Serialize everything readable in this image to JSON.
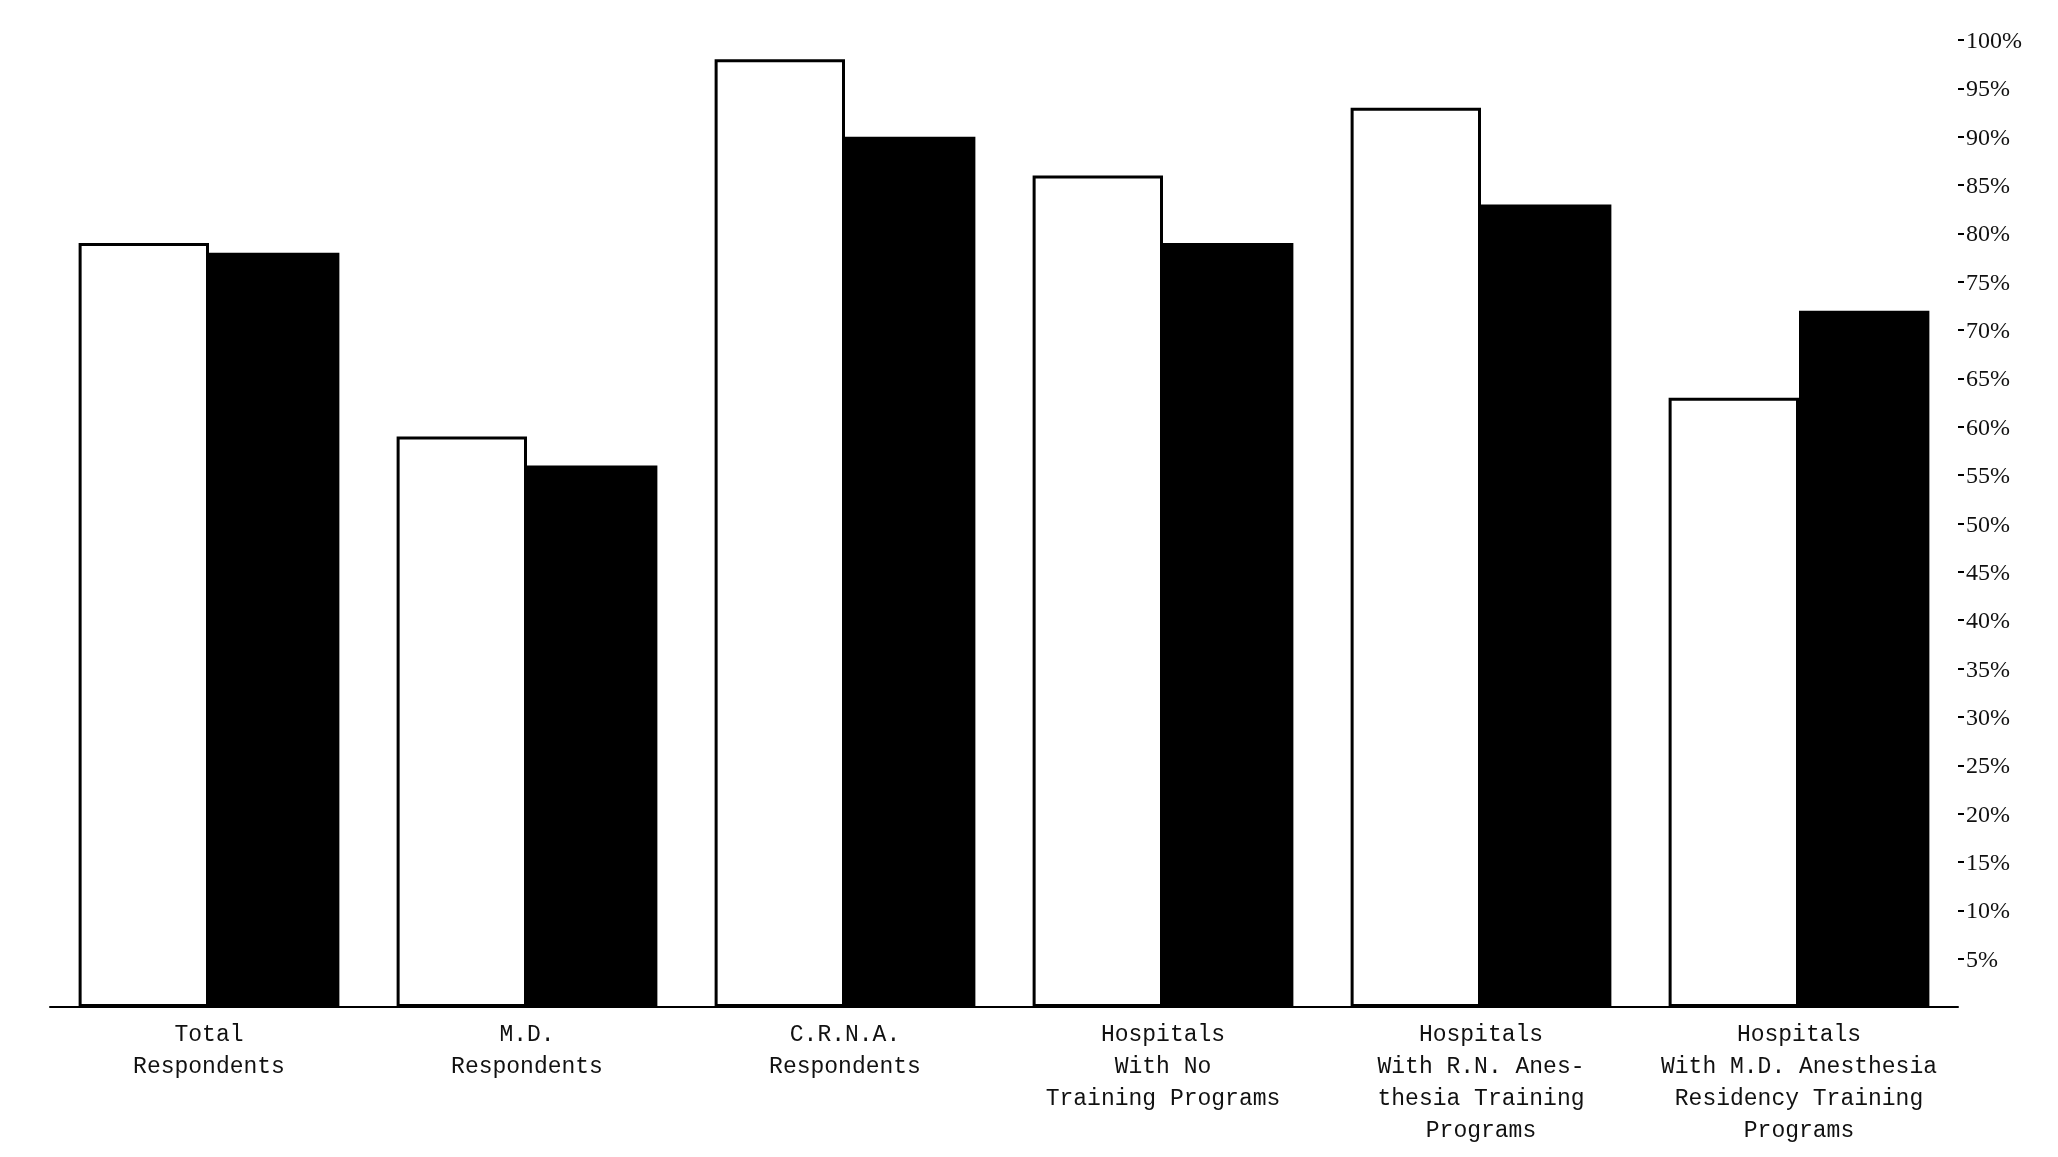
{
  "chart_data": {
    "type": "bar",
    "categories": [
      "Total\nRespondents",
      "M.D.\nRespondents",
      "C.R.N.A.\nRespondents",
      "Hospitals\nWith No\nTraining Programs",
      "Hospitals\nWith R.N. Anes-\nthesia Training\nPrograms",
      "Hospitals\nWith M.D. Anesthesia\nResidency Training\nPrograms"
    ],
    "series": [
      {
        "color": "#ffffff",
        "values": [
          79,
          59,
          98,
          86,
          93,
          63
        ]
      },
      {
        "color": "#000000",
        "values": [
          78,
          56,
          90,
          79,
          83,
          72
        ]
      }
    ],
    "ylim": [
      0,
      100
    ],
    "yticks": [
      {
        "value": 5,
        "label": "5%"
      },
      {
        "value": 10,
        "label": "10%"
      },
      {
        "value": 15,
        "label": "15%"
      },
      {
        "value": 20,
        "label": "20%"
      },
      {
        "value": 25,
        "label": "25%"
      },
      {
        "value": 30,
        "label": "30%"
      },
      {
        "value": 35,
        "label": "35%"
      },
      {
        "value": 40,
        "label": "40%"
      },
      {
        "value": 45,
        "label": "45%"
      },
      {
        "value": 50,
        "label": "50%"
      },
      {
        "value": 55,
        "label": "55%"
      },
      {
        "value": 60,
        "label": "60%"
      },
      {
        "value": 65,
        "label": "65%"
      },
      {
        "value": 70,
        "label": "70%"
      },
      {
        "value": 75,
        "label": "75%"
      },
      {
        "value": 80,
        "label": "80%"
      },
      {
        "value": 85,
        "label": "85%"
      },
      {
        "value": 90,
        "label": "90%"
      },
      {
        "value": 95,
        "label": "95%"
      },
      {
        "value": 100,
        "label": "100%"
      }
    ],
    "grid": false
  }
}
